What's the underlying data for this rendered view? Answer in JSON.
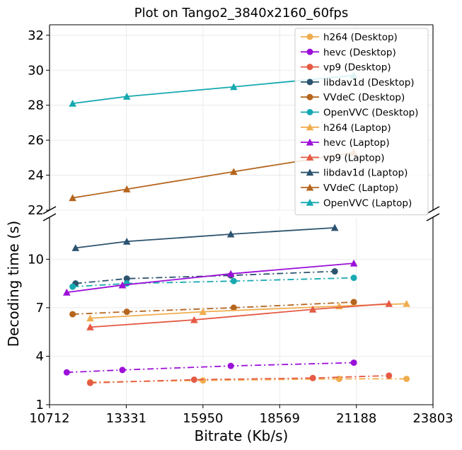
{
  "chart_data": {
    "type": "line",
    "title": "Plot on Tango2_3840x2160_60fps",
    "xlabel": "Bitrate (Kb/s)",
    "ylabel": "Decoding time (s)",
    "xlim": [
      10712,
      23803
    ],
    "x_ticks": [
      "10712",
      "13331",
      "15950",
      "18569",
      "21188",
      "23803"
    ],
    "broken_y_axis": true,
    "upper_ylim": [
      22,
      32.6
    ],
    "upper_y_ticks": [
      "22",
      "24",
      "26",
      "28",
      "30",
      "32"
    ],
    "lower_ylim": [
      1,
      12.6
    ],
    "lower_y_ticks": [
      "1",
      "4",
      "7",
      "10"
    ],
    "grid": true,
    "legend_position": "top-right",
    "series": [
      {
        "name": "h264 (Desktop)",
        "color": "#f0ad4e",
        "marker": "circle",
        "linestyle": "dashdot",
        "x": [
          12100,
          15950,
          20600,
          22900
        ],
        "y": [
          2.4,
          2.5,
          2.6,
          2.6
        ]
      },
      {
        "name": "hevc (Desktop)",
        "color": "#9b0fd8",
        "marker": "circle",
        "linestyle": "dashdot",
        "x": [
          11300,
          13200,
          16900,
          21100
        ],
        "y": [
          3.0,
          3.15,
          3.4,
          3.6
        ]
      },
      {
        "name": "vp9 (Desktop)",
        "color": "#e55a44",
        "marker": "circle",
        "linestyle": "dashdot",
        "x": [
          12100,
          15650,
          19700,
          22300
        ],
        "y": [
          2.35,
          2.55,
          2.65,
          2.8
        ]
      },
      {
        "name": "libdav1d (Desktop)",
        "color": "#2c536f",
        "marker": "circle",
        "linestyle": "dashdot",
        "x": [
          11600,
          13350,
          16900,
          20450
        ],
        "y": [
          8.5,
          8.8,
          9.0,
          9.25
        ]
      },
      {
        "name": "VVdeC (Desktop)",
        "color": "#b5651d",
        "marker": "circle",
        "linestyle": "dashdot",
        "x": [
          11500,
          13350,
          17000,
          21100
        ],
        "y": [
          6.6,
          6.75,
          7.0,
          7.35
        ]
      },
      {
        "name": "OpenVVC (Desktop)",
        "color": "#17a9b1",
        "marker": "circle",
        "linestyle": "dashdot",
        "x": [
          11500,
          13350,
          17000,
          21100
        ],
        "y": [
          8.3,
          8.5,
          8.65,
          8.85
        ]
      },
      {
        "name": "h264 (Laptop)",
        "color": "#f0ad4e",
        "marker": "triangle",
        "linestyle": "solid",
        "x": [
          12100,
          15950,
          20600,
          22900
        ],
        "y": [
          6.35,
          6.75,
          7.1,
          7.25
        ]
      },
      {
        "name": "hevc (Laptop)",
        "color": "#9b0fd8",
        "marker": "triangle",
        "linestyle": "solid",
        "x": [
          11300,
          13200,
          16900,
          21100
        ],
        "y": [
          7.95,
          8.4,
          9.1,
          9.75
        ]
      },
      {
        "name": "vp9 (Laptop)",
        "color": "#e55a44",
        "marker": "triangle",
        "linestyle": "solid",
        "x": [
          12100,
          15650,
          19700,
          22300
        ],
        "y": [
          5.8,
          6.25,
          6.9,
          7.25
        ]
      },
      {
        "name": "libdav1d (Laptop)",
        "color": "#2c536f",
        "marker": "triangle",
        "linestyle": "solid",
        "x": [
          11600,
          13350,
          16900,
          20450
        ],
        "y": [
          10.7,
          11.1,
          11.55,
          11.95
        ]
      },
      {
        "name": "VVdeC (Laptop)",
        "color": "#b5651d",
        "marker": "triangle",
        "linestyle": "solid",
        "x": [
          11500,
          13350,
          17000,
          21100
        ],
        "y": [
          22.7,
          23.2,
          24.2,
          25.3
        ]
      },
      {
        "name": "OpenVVC (Laptop)",
        "color": "#17a9b1",
        "marker": "triangle",
        "linestyle": "solid",
        "x": [
          11500,
          13350,
          17000,
          21100
        ],
        "y": [
          28.1,
          28.5,
          29.05,
          29.7
        ]
      }
    ]
  }
}
